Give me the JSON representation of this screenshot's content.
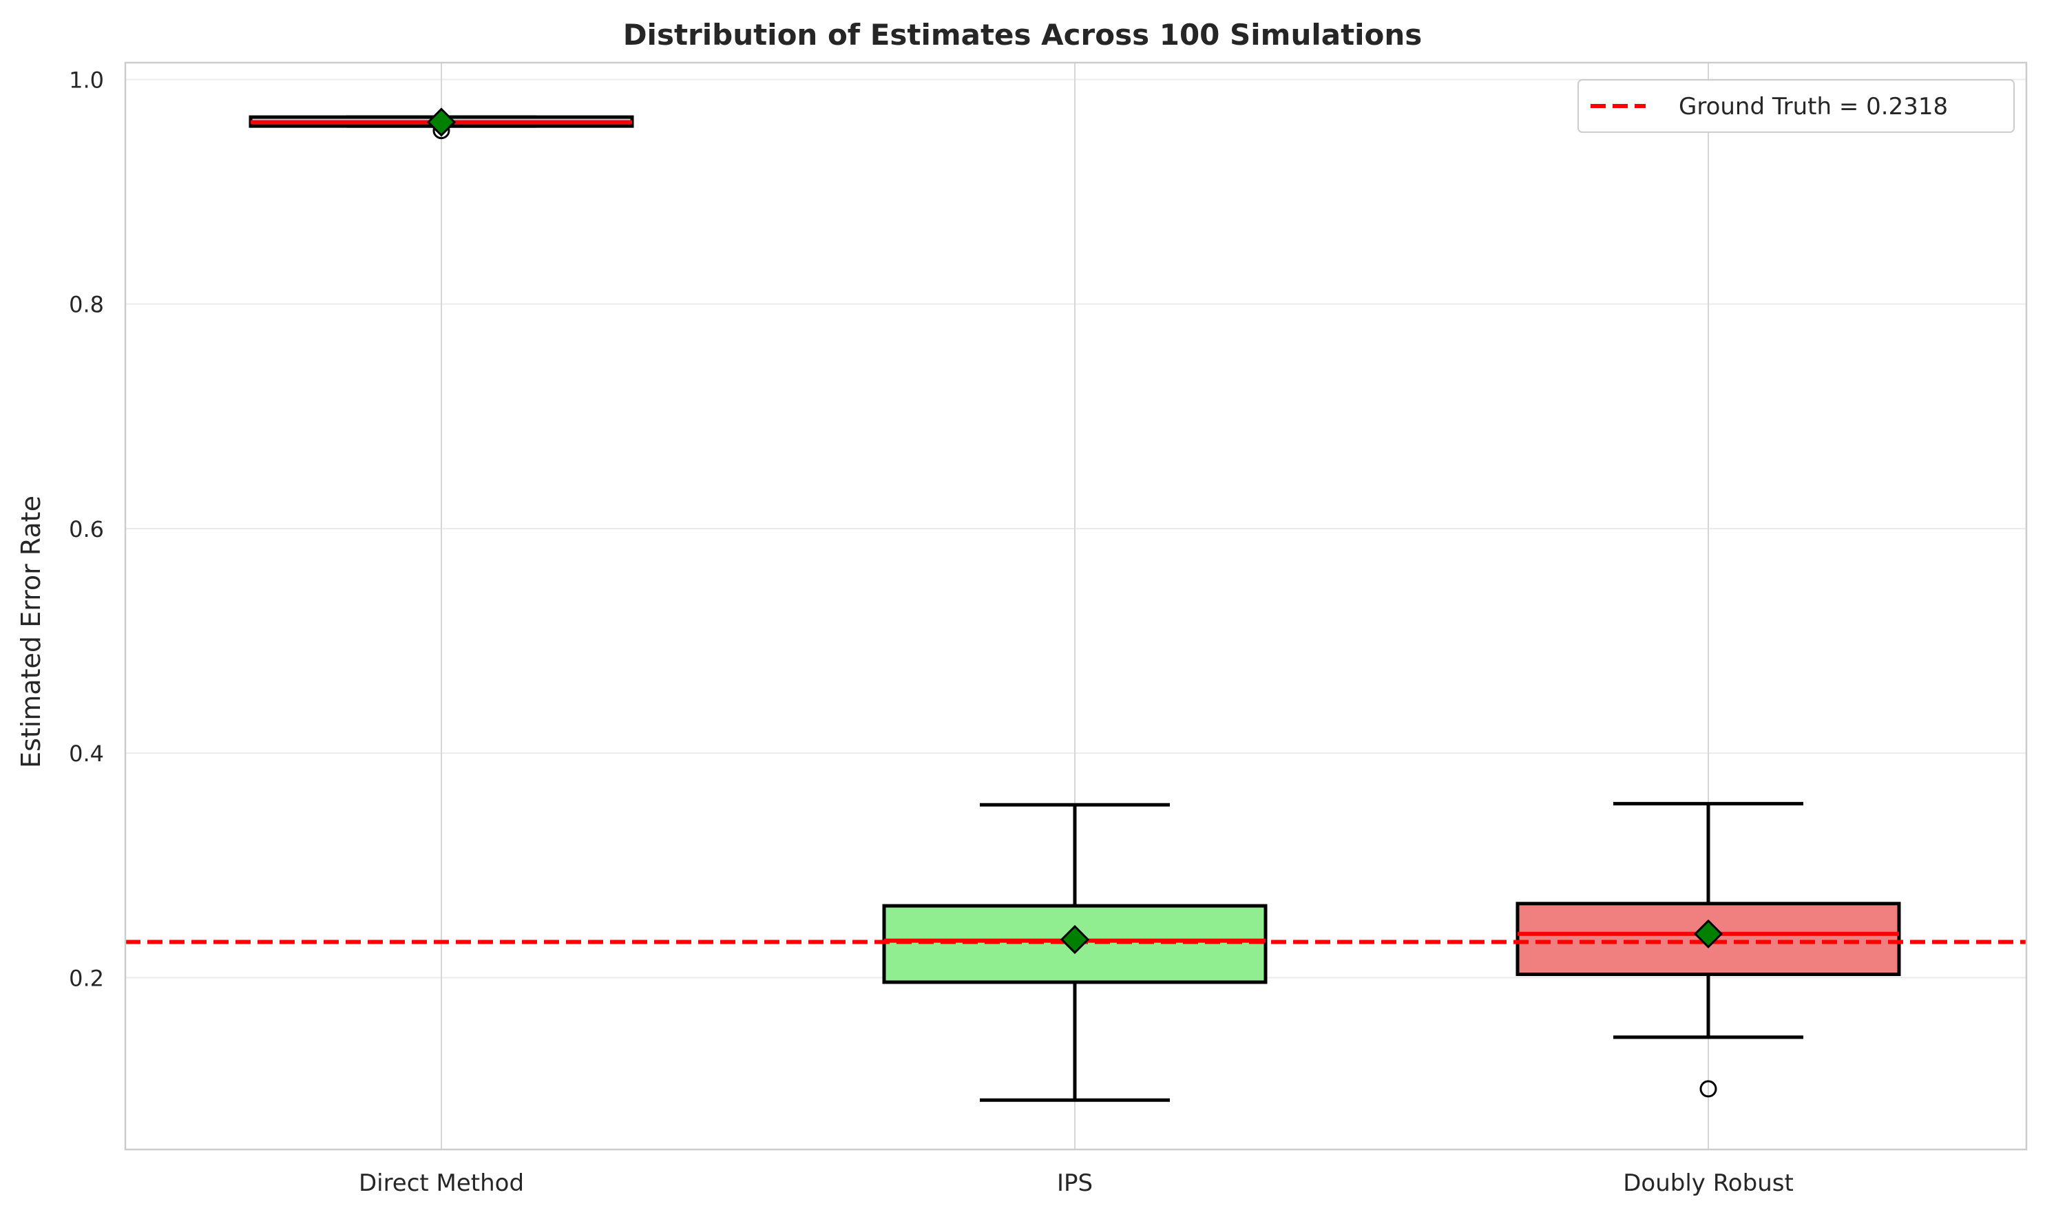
{
  "chart_data": {
    "type": "box",
    "title": "Distribution of Estimates Across 100 Simulations",
    "xlabel": "",
    "ylabel": "Estimated Error Rate",
    "ylim": [
      0.047,
      1.015
    ],
    "yticks": [
      0.2,
      0.4,
      0.6,
      0.8,
      1.0
    ],
    "ytick_labels": [
      "0.2",
      "0.4",
      "0.6",
      "0.8",
      "1.0"
    ],
    "categories": [
      "Direct Method",
      "IPS",
      "Doubly Robust"
    ],
    "grid": true,
    "legend_position": "top-right",
    "reference_line": {
      "label": "Ground Truth = 0.2318",
      "value": 0.2318,
      "color": "#ff0000",
      "style": "dashed"
    },
    "boxes": [
      {
        "category": "Direct Method",
        "q1": 0.9585,
        "median": 0.962,
        "q3": 0.9665,
        "whisker_low": 0.9585,
        "whisker_high": 0.9665,
        "mean": 0.962,
        "outliers": [
          0.9545
        ],
        "fill": "#add8e6"
      },
      {
        "category": "IPS",
        "q1": 0.196,
        "median": 0.233,
        "q3": 0.264,
        "whisker_low": 0.091,
        "whisker_high": 0.354,
        "mean": 0.234,
        "outliers": [],
        "fill": "#90ee90"
      },
      {
        "category": "Doubly Robust",
        "q1": 0.203,
        "median": 0.239,
        "q3": 0.266,
        "whisker_low": 0.147,
        "whisker_high": 0.355,
        "mean": 0.239,
        "outliers": [
          0.101
        ],
        "fill": "#f08080"
      }
    ],
    "median_color": "#ff0000",
    "mean_marker_color": "#008000"
  }
}
